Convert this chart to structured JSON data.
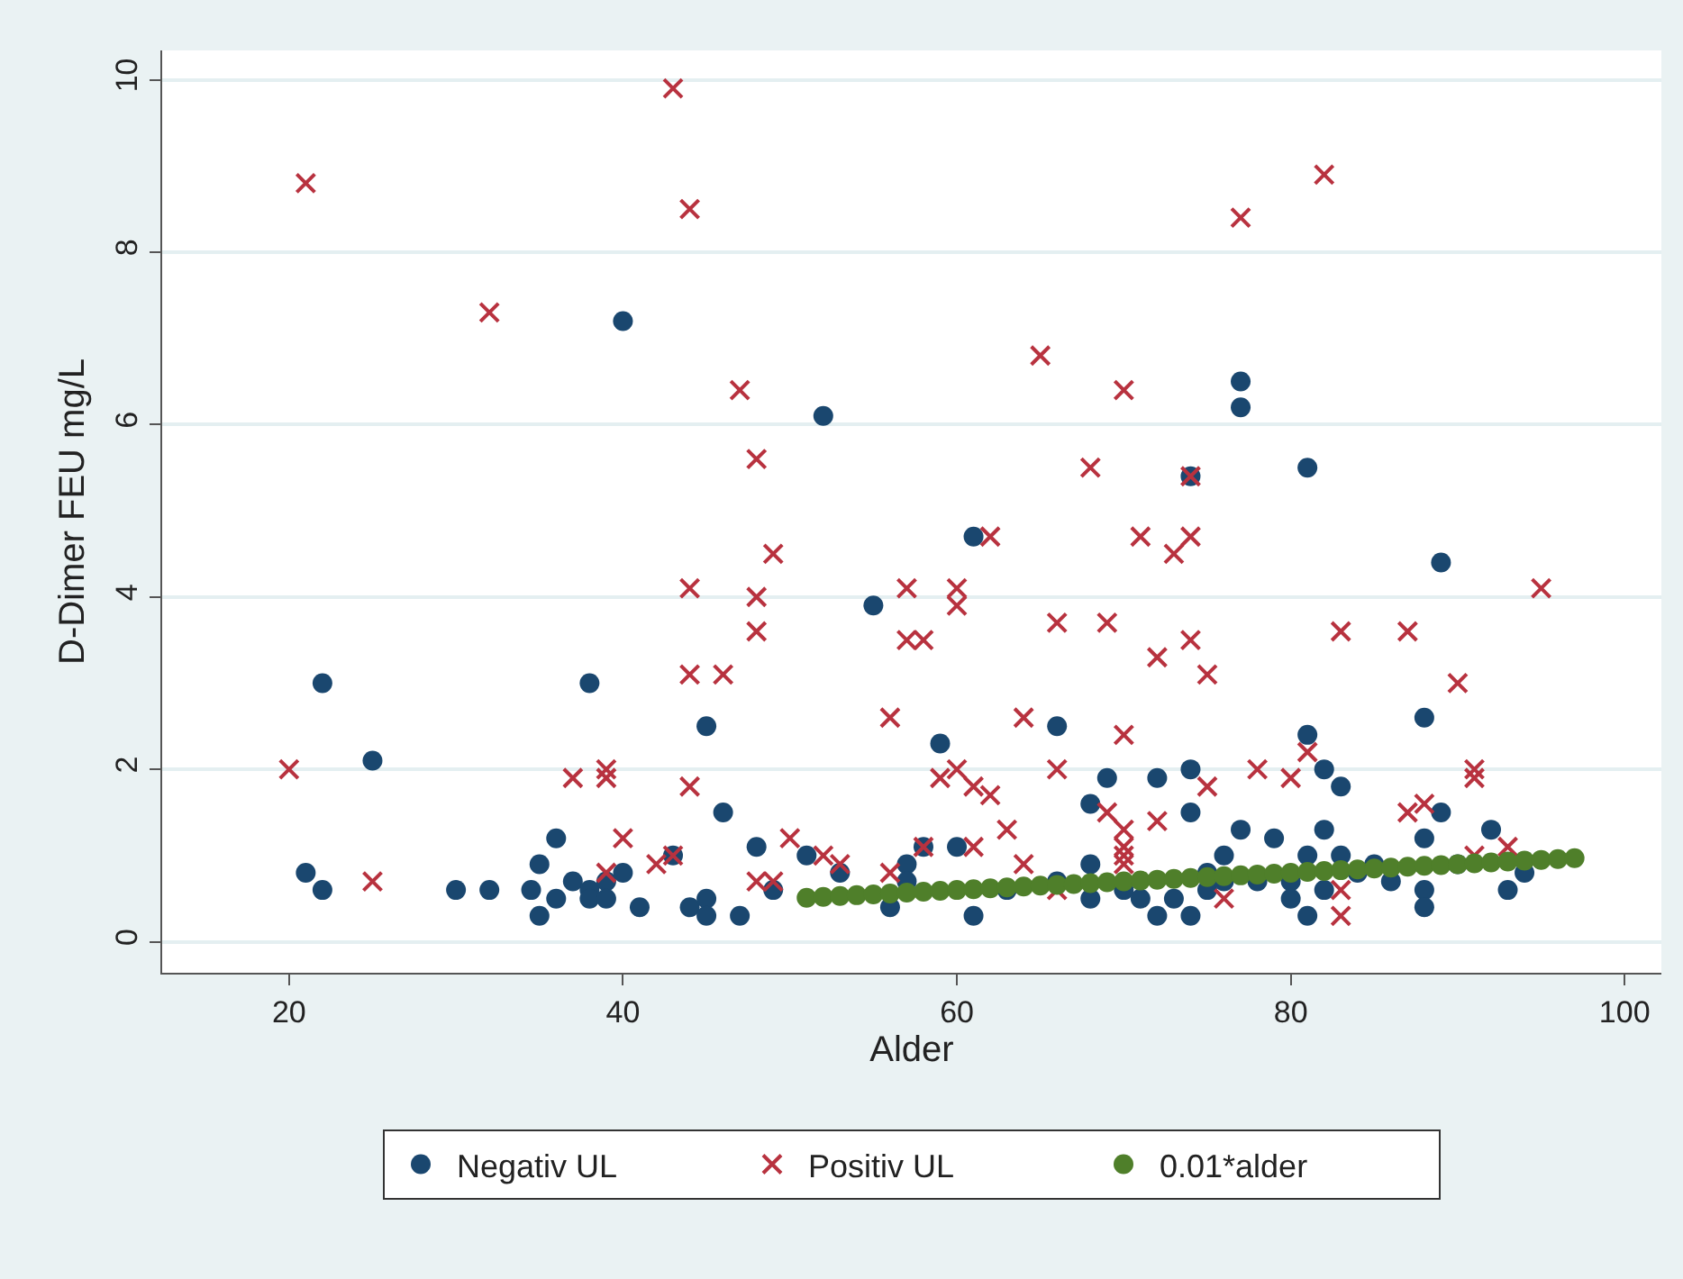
{
  "chart_data": {
    "type": "scatter",
    "xlabel": "Alder",
    "ylabel": "D-Dimer FEU mg/L",
    "xlim": [
      12.4,
      102.2
    ],
    "ylim": [
      -0.36,
      10.34
    ],
    "xticks": [
      20,
      40,
      60,
      80,
      100
    ],
    "yticks": [
      0,
      2,
      4,
      6,
      8,
      10
    ],
    "grid": "y",
    "legend": "bottom",
    "series": [
      {
        "name": "Negativ UL",
        "color": "#1a476f",
        "marker": "circle",
        "x": [
          21,
          22,
          22,
          25,
          30,
          32,
          34.5,
          35,
          35,
          36,
          36,
          37,
          38,
          38,
          38,
          39,
          39,
          40,
          40,
          41,
          43,
          44,
          45,
          45,
          45,
          46,
          47,
          48,
          49,
          51,
          52,
          53,
          55,
          56,
          57,
          57,
          58,
          59,
          60,
          61,
          61,
          63,
          66,
          66,
          68,
          68,
          68,
          69,
          70,
          71,
          72,
          72,
          73,
          74,
          74,
          74,
          74,
          75,
          75,
          76,
          76,
          77,
          77,
          77,
          78,
          79,
          80,
          80,
          81,
          81,
          81,
          81,
          82,
          82,
          82,
          83,
          83,
          84,
          85,
          86,
          88,
          88,
          88,
          88,
          89,
          89,
          90,
          92,
          93,
          94
        ],
        "values": [
          0.8,
          3.0,
          0.6,
          2.1,
          0.6,
          0.6,
          0.6,
          0.9,
          0.3,
          1.2,
          0.5,
          0.7,
          3.0,
          0.6,
          0.5,
          0.7,
          0.5,
          7.2,
          0.8,
          0.4,
          1.0,
          0.4,
          2.5,
          0.5,
          0.3,
          1.5,
          0.3,
          1.1,
          0.6,
          1.0,
          6.1,
          0.8,
          3.9,
          0.4,
          0.9,
          0.7,
          1.1,
          2.3,
          1.1,
          4.7,
          0.3,
          0.6,
          2.5,
          0.7,
          1.6,
          0.9,
          0.5,
          1.9,
          0.6,
          0.5,
          1.9,
          0.3,
          0.5,
          5.4,
          2.0,
          1.5,
          0.3,
          0.8,
          0.6,
          1.0,
          0.7,
          6.5,
          6.2,
          1.3,
          0.7,
          1.2,
          0.7,
          0.5,
          5.5,
          2.4,
          1.0,
          0.3,
          2.0,
          1.3,
          0.6,
          1.8,
          1.0,
          0.8,
          0.9,
          0.7,
          2.6,
          1.2,
          0.6,
          0.4,
          4.4,
          1.5,
          0.9,
          1.3,
          0.6,
          0.8
        ]
      },
      {
        "name": "Positiv UL",
        "color": "#b8323f",
        "marker": "cross",
        "x": [
          20,
          21,
          25,
          32,
          37,
          39,
          39,
          40,
          39,
          42,
          43,
          43,
          44,
          44,
          44,
          44,
          46,
          47,
          48,
          48,
          48,
          48,
          49,
          49,
          50,
          52,
          53,
          56,
          56,
          57,
          57,
          58,
          58,
          59,
          60,
          60,
          60,
          61,
          61,
          62,
          62,
          63,
          64,
          64,
          65,
          66,
          66,
          66,
          68,
          69,
          69,
          70,
          70,
          70,
          70,
          70,
          70,
          71,
          72,
          72,
          73,
          74,
          74,
          74,
          75,
          75,
          76,
          77,
          78,
          80,
          81,
          82,
          83,
          83,
          83,
          87,
          87,
          88,
          90,
          91,
          91,
          91,
          93,
          95
        ],
        "values": [
          2.0,
          8.8,
          0.7,
          7.3,
          1.9,
          2.0,
          1.9,
          1.2,
          0.8,
          0.9,
          9.9,
          1.0,
          8.5,
          4.1,
          3.1,
          1.8,
          3.1,
          6.4,
          5.6,
          4.0,
          3.6,
          0.7,
          4.5,
          0.7,
          1.2,
          1.0,
          0.9,
          2.6,
          0.8,
          4.1,
          3.5,
          3.5,
          1.1,
          1.9,
          4.1,
          3.9,
          2.0,
          1.8,
          1.1,
          4.7,
          1.7,
          1.3,
          2.6,
          0.9,
          6.8,
          3.7,
          2.0,
          0.6,
          5.5,
          3.7,
          1.5,
          6.4,
          2.4,
          1.3,
          1.1,
          1.0,
          0.9,
          4.7,
          3.3,
          1.4,
          4.5,
          5.4,
          4.7,
          3.5,
          3.1,
          1.8,
          0.5,
          8.4,
          2.0,
          1.9,
          2.2,
          8.9,
          3.6,
          0.6,
          0.3,
          3.6,
          1.5,
          1.6,
          3.0,
          2.0,
          1.9,
          1.0,
          1.1,
          4.1
        ]
      },
      {
        "name": "0.01*alder",
        "color": "#4f7f2a",
        "marker": "circle",
        "x": [
          51,
          52,
          53,
          54,
          55,
          56,
          57,
          58,
          59,
          60,
          61,
          62,
          63,
          64,
          65,
          66,
          67,
          68,
          69,
          70,
          71,
          72,
          73,
          74,
          75,
          76,
          77,
          78,
          79,
          80,
          81,
          82,
          83,
          84,
          85,
          86,
          87,
          88,
          89,
          90,
          91,
          92,
          93,
          94,
          95,
          96,
          97
        ],
        "values": [
          0.51,
          0.52,
          0.53,
          0.54,
          0.55,
          0.56,
          0.57,
          0.58,
          0.59,
          0.6,
          0.61,
          0.62,
          0.63,
          0.64,
          0.65,
          0.66,
          0.67,
          0.68,
          0.69,
          0.7,
          0.71,
          0.72,
          0.73,
          0.74,
          0.75,
          0.76,
          0.77,
          0.78,
          0.79,
          0.8,
          0.81,
          0.82,
          0.83,
          0.84,
          0.85,
          0.86,
          0.87,
          0.88,
          0.89,
          0.9,
          0.91,
          0.92,
          0.93,
          0.94,
          0.95,
          0.96,
          0.97
        ]
      }
    ]
  }
}
